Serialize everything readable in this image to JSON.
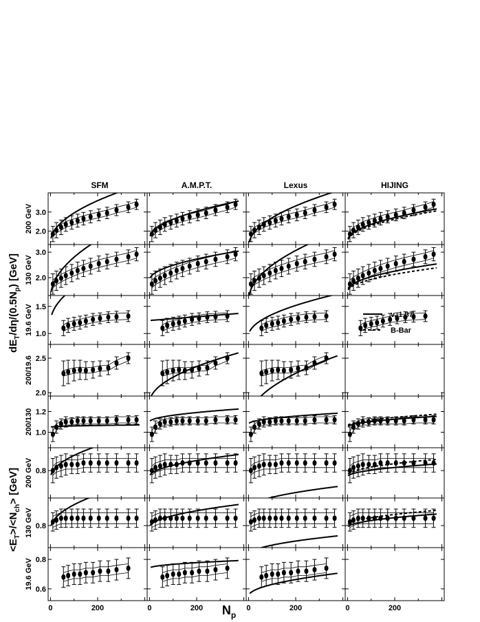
{
  "chart_data": {
    "type": "scatter",
    "columns": [
      "SFM",
      "A.M.P.T.",
      "Lexus",
      "HIJING"
    ],
    "group_ylabels": [
      {
        "main": "dE",
        "sub1": "T",
        "mid": "/dη/(0.5N",
        "sub2": "p",
        "end": ") [GeV]"
      },
      {
        "main": "<E",
        "sub1": "T",
        "mid": ">/<N",
        "sub2": "ch",
        "end": "> [GeV]"
      }
    ],
    "xlabel": {
      "main": "N",
      "sub": "p"
    },
    "x_ticks": [
      "0",
      "200"
    ],
    "x_tick_values": [
      0,
      200
    ],
    "xlim": [
      -10,
      410
    ],
    "legend": {
      "entries": [
        {
          "label": "v. 1.37",
          "style": "solid"
        },
        {
          "label": "B-Bar",
          "style": "dashed"
        }
      ]
    },
    "rows": [
      {
        "label": "200 GeV",
        "ylim": [
          1.3,
          4.0
        ],
        "ticks": [
          "2.0",
          "3.0"
        ],
        "tick_values": [
          2.0,
          3.0
        ],
        "data": {
          "x": [
            10,
            25,
            45,
            65,
            90,
            115,
            140,
            170,
            205,
            240,
            280,
            330,
            365
          ],
          "y": [
            1.85,
            2.05,
            2.2,
            2.35,
            2.45,
            2.55,
            2.65,
            2.75,
            2.85,
            2.95,
            3.1,
            3.25,
            3.4
          ],
          "err": [
            0.4,
            0.4,
            0.38,
            0.36,
            0.35,
            0.34,
            0.33,
            0.32,
            0.31,
            0.3,
            0.29,
            0.28,
            0.27
          ]
        },
        "band": true,
        "band_halfwidth": 0.15,
        "curves": [
          {
            "a": 1.4,
            "b": 2.9,
            "kind": "sqrt",
            "dashed": false
          },
          {
            "a": 1.6,
            "b": 1.9,
            "kind": "sqrt",
            "dashed": false
          },
          {
            "a": 1.2,
            "b": 2.8,
            "kind": "sqrt",
            "dashed": false
          },
          {
            "a": 1.5,
            "b": 1.6,
            "kind": "sqrt",
            "dashed": false
          },
          {
            "a": 1.45,
            "b": 1.55,
            "kind": "sqrt",
            "dashed": true
          }
        ]
      },
      {
        "label": "130 GeV",
        "ylim": [
          1.3,
          3.3
        ],
        "ticks": [
          "2.0",
          "3.0"
        ],
        "tick_values": [
          2.0,
          3.0
        ],
        "data": {
          "x": [
            10,
            25,
            45,
            65,
            90,
            115,
            140,
            170,
            205,
            240,
            280,
            330,
            365
          ],
          "y": [
            1.75,
            1.88,
            1.98,
            2.08,
            2.18,
            2.28,
            2.36,
            2.45,
            2.55,
            2.63,
            2.72,
            2.82,
            2.92
          ],
          "err": [
            0.4,
            0.38,
            0.36,
            0.35,
            0.34,
            0.33,
            0.32,
            0.31,
            0.3,
            0.29,
            0.28,
            0.27,
            0.26
          ]
        },
        "band": true,
        "band_halfwidth": 0.15,
        "curves": [
          {
            "a": 1.2,
            "b": 3.0,
            "kind": "sqrt",
            "dashed": false
          },
          {
            "a": 1.9,
            "b": 1.1,
            "kind": "sqrt",
            "dashed": false
          },
          {
            "a": 1.1,
            "b": 2.6,
            "kind": "sqrt",
            "dashed": false
          },
          {
            "a": 1.5,
            "b": 1.0,
            "kind": "sqrt",
            "dashed": false
          },
          {
            "a": 1.45,
            "b": 0.9,
            "kind": "sqrt",
            "dashed": true
          }
        ]
      },
      {
        "label": "19.6 GeV",
        "ylim": [
          0.8,
          1.7
        ],
        "ticks": [
          "1.0",
          "1.5"
        ],
        "tick_values": [
          1.0,
          1.5
        ],
        "data": {
          "x": [
            55,
            75,
            100,
            125,
            150,
            180,
            210,
            245,
            280,
            330
          ],
          "y": [
            1.1,
            1.15,
            1.18,
            1.2,
            1.23,
            1.26,
            1.28,
            1.3,
            1.31,
            1.32
          ],
          "err": [
            0.14,
            0.13,
            0.12,
            0.12,
            0.11,
            0.11,
            0.1,
            0.1,
            0.1,
            0.1
          ]
        },
        "band": true,
        "band_halfwidth": 0.06,
        "curves": [
          {
            "a": 1.2,
            "b": 1.2,
            "kind": "sqrt",
            "dashed": false
          },
          {
            "a": 1.24,
            "b": 0.12,
            "kind": "lin",
            "dashed": false
          },
          {
            "a": 0.95,
            "b": 0.75,
            "kind": "sqrt",
            "dashed": false
          }
        ]
      },
      {
        "label": "200/19.6",
        "ylim": [
          1.95,
          2.7
        ],
        "ticks": [
          "2.0",
          "2.5"
        ],
        "tick_values": [
          2.0,
          2.5
        ],
        "data": {
          "x": [
            55,
            75,
            100,
            125,
            150,
            180,
            210,
            245,
            280,
            330
          ],
          "y": [
            2.28,
            2.3,
            2.32,
            2.33,
            2.32,
            2.33,
            2.35,
            2.36,
            2.43,
            2.5
          ],
          "err": [
            0.18,
            0.17,
            0.15,
            0.14,
            0.13,
            0.12,
            0.11,
            0.1,
            0.09,
            0.08
          ]
        },
        "band": true,
        "band_halfwidth": 0.04,
        "curves": [
          {
            "a": 1.85,
            "b": 0.7,
            "kind": "sqrt",
            "dashed": false
          },
          {
            "a": 1.6,
            "b": 0.9,
            "kind": "sqrt",
            "dashed": false
          }
        ]
      },
      {
        "label": "200/130",
        "ylim": [
          0.85,
          1.35
        ],
        "ticks": [
          "1.0",
          "1.2"
        ],
        "tick_values": [
          1.0,
          1.2
        ],
        "data": {
          "x": [
            10,
            25,
            45,
            65,
            90,
            115,
            140,
            170,
            205,
            240,
            280,
            330,
            365
          ],
          "y": [
            0.98,
            1.05,
            1.08,
            1.1,
            1.1,
            1.11,
            1.11,
            1.11,
            1.11,
            1.11,
            1.12,
            1.12,
            1.12
          ],
          "err": [
            0.07,
            0.06,
            0.05,
            0.05,
            0.04,
            0.04,
            0.04,
            0.04,
            0.04,
            0.04,
            0.04,
            0.04,
            0.04
          ]
        },
        "band": true,
        "band_halfwidth": 0.03,
        "curves": [
          {
            "a": 1.05,
            "b": 0.02,
            "kind": "sqrt",
            "dashed": false
          },
          {
            "a": 1.1,
            "b": 0.12,
            "kind": "sqrt",
            "dashed": false
          },
          {
            "a": 1.08,
            "b": 0.1,
            "kind": "sqrt",
            "dashed": false
          },
          {
            "a": 1.05,
            "b": 0.1,
            "kind": "sqrt",
            "dashed": false
          },
          {
            "a": 1.06,
            "b": 0.11,
            "kind": "sqrt",
            "dashed": true
          }
        ]
      },
      {
        "label": "200 GeV",
        "ylim": [
          0.62,
          0.95
        ],
        "ticks": [
          "0.8"
        ],
        "tick_values": [
          0.8
        ],
        "data": {
          "x": [
            10,
            25,
            45,
            65,
            90,
            115,
            140,
            170,
            205,
            240,
            280,
            330,
            365
          ],
          "y": [
            0.8,
            0.82,
            0.83,
            0.84,
            0.84,
            0.84,
            0.85,
            0.85,
            0.85,
            0.85,
            0.85,
            0.85,
            0.85
          ],
          "err": [
            0.08,
            0.07,
            0.07,
            0.07,
            0.06,
            0.06,
            0.06,
            0.06,
            0.06,
            0.06,
            0.06,
            0.06,
            0.06
          ]
        },
        "band": true,
        "band_halfwidth": 0.03,
        "curves": [
          {
            "a": 0.75,
            "b": 0.28,
            "kind": "sqrt",
            "dashed": false
          },
          {
            "a": 0.76,
            "b": 0.14,
            "kind": "sqrt",
            "dashed": false
          },
          {
            "a": 0.55,
            "b": 0.14,
            "kind": "sqrt",
            "dashed": false
          },
          {
            "a": 0.76,
            "b": 0.08,
            "kind": "sqrt",
            "dashed": false
          },
          {
            "a": 0.77,
            "b": 0.1,
            "kind": "sqrt",
            "dashed": true
          }
        ]
      },
      {
        "label": "130 GeV",
        "ylim": [
          0.68,
          0.95
        ],
        "ticks": [
          "0.8"
        ],
        "tick_values": [
          0.8
        ],
        "data": {
          "x": [
            10,
            25,
            45,
            65,
            90,
            115,
            140,
            170,
            205,
            240,
            280,
            330,
            365
          ],
          "y": [
            0.82,
            0.83,
            0.84,
            0.84,
            0.84,
            0.84,
            0.84,
            0.84,
            0.84,
            0.84,
            0.84,
            0.84,
            0.84
          ],
          "err": [
            0.05,
            0.05,
            0.05,
            0.05,
            0.05,
            0.05,
            0.05,
            0.05,
            0.05,
            0.05,
            0.05,
            0.05,
            0.05
          ]
        },
        "band": true,
        "band_halfwidth": 0.03,
        "curves": [
          {
            "a": 0.78,
            "b": 0.25,
            "kind": "sqrt",
            "dashed": false
          },
          {
            "a": 0.79,
            "b": 0.12,
            "kind": "sqrt",
            "dashed": false
          },
          {
            "a": 0.64,
            "b": 0.1,
            "kind": "sqrt",
            "dashed": false
          },
          {
            "a": 0.79,
            "b": 0.07,
            "kind": "sqrt",
            "dashed": false
          },
          {
            "a": 0.8,
            "b": 0.08,
            "kind": "sqrt",
            "dashed": true
          }
        ]
      },
      {
        "label": "19.6 GeV",
        "ylim": [
          0.52,
          0.88
        ],
        "ticks": [
          "0.6",
          "0.8"
        ],
        "tick_values": [
          0.6,
          0.8
        ],
        "data": {
          "x": [
            55,
            75,
            100,
            125,
            150,
            180,
            210,
            245,
            280,
            330
          ],
          "y": [
            0.68,
            0.69,
            0.7,
            0.7,
            0.71,
            0.71,
            0.72,
            0.72,
            0.73,
            0.74
          ],
          "err": [
            0.07,
            0.07,
            0.07,
            0.07,
            0.07,
            0.07,
            0.07,
            0.07,
            0.07,
            0.07
          ]
        },
        "band": true,
        "band_halfwidth": 0.03,
        "curves": [
          {
            "a": 0.74,
            "b": 0.05,
            "kind": "sqrt",
            "dashed": false
          },
          {
            "a": 0.55,
            "b": 0.15,
            "kind": "sqrt",
            "dashed": false
          }
        ]
      }
    ],
    "panels_with_curves": {
      "0": [
        [
          0
        ],
        [
          1
        ],
        [
          2
        ],
        [
          3,
          4
        ]
      ],
      "1": [
        [
          0
        ],
        [
          1
        ],
        [
          2
        ],
        [
          3,
          4
        ]
      ],
      "2": [
        [
          0
        ],
        [
          1
        ],
        [
          2
        ],
        []
      ],
      "3": [
        [],
        [
          0
        ],
        [
          1
        ],
        null
      ],
      "4": [
        [
          0
        ],
        [
          1
        ],
        [
          2
        ],
        [
          3,
          4
        ]
      ],
      "5": [
        [
          0
        ],
        [
          1
        ],
        [
          2
        ],
        [
          3,
          4
        ]
      ],
      "6": [
        [
          0
        ],
        [
          1
        ],
        [
          2
        ],
        [
          3,
          4
        ]
      ],
      "7": [
        [],
        [
          0
        ],
        [
          1
        ],
        null
      ]
    }
  }
}
